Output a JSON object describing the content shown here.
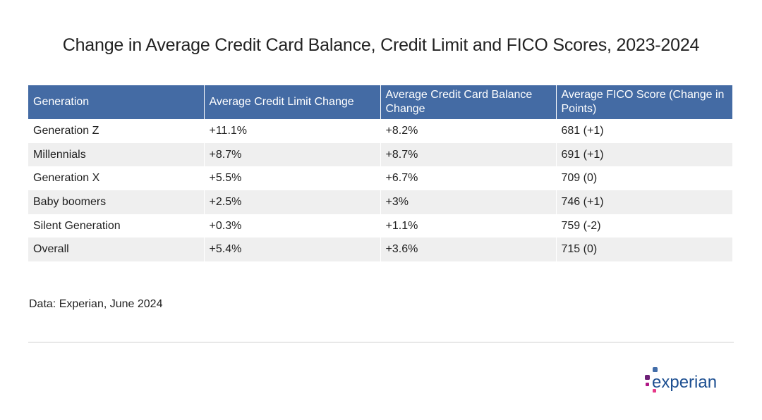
{
  "chart_data": {
    "type": "table",
    "title": "Change in Average Credit Card Balance, Credit Limit and FICO Scores, 2023-2024",
    "columns": [
      "Generation",
      "Average Credit Limit Change",
      "Average Credit Card Balance Change",
      "Average FICO Score (Change in Points)"
    ],
    "rows": [
      [
        "Generation Z",
        "+11.1%",
        "+8.2%",
        "681 (+1)"
      ],
      [
        "Millennials",
        "+8.7%",
        "+8.7%",
        "691 (+1)"
      ],
      [
        "Generation X",
        "+5.5%",
        "+6.7%",
        "709 (0)"
      ],
      [
        "Baby boomers",
        "+2.5%",
        "+3%",
        "746 (+1)"
      ],
      [
        "Silent Generation",
        "+0.3%",
        "+1.1%",
        "759 (-2)"
      ],
      [
        "Overall",
        "+5.4%",
        "+3.6%",
        "715 (0)"
      ]
    ],
    "source": "Data: Experian, June 2024"
  },
  "logo": {
    "text": "experian",
    "icon": "experian-logo-icon",
    "colors": {
      "text": "#1d4f91",
      "dot_blue": "#426da9",
      "dot_purple": "#6d2077",
      "dot_magenta": "#af1685",
      "dot_red": "#e63888"
    }
  },
  "colors": {
    "header_bg": "#446ba4",
    "header_text": "#ffffff",
    "stripe": "#efefef",
    "divider": "#cfcfcf"
  }
}
